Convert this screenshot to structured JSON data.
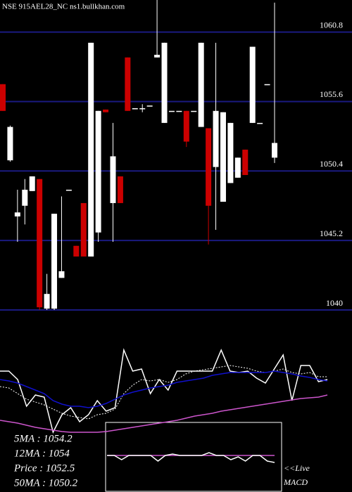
{
  "chart_data": [
    {
      "type": "candlestick",
      "title": "NSE 915AEL28_NC ns1.bullkhan.com",
      "open": [
        1056.9,
        1051.2,
        1047.0,
        1047.8,
        1048.9,
        1049.8,
        1040.1,
        1040.1,
        1042.4,
        1049.0,
        1044.8,
        1048.0,
        1044.0,
        1045.8,
        1055.0,
        1048.0,
        1050.0,
        1058.9,
        1055.1,
        1055.1,
        1055.3,
        1058.9,
        1054.0,
        1054.9,
        1054.9,
        1054.9,
        1054.9,
        1053.7,
        1053.6,
        1050.7,
        1048.1,
        1049.5,
        1049.9,
        1052.0,
        1054.0,
        1054.0,
        1056.9,
        1051.4
      ],
      "high": [
        1056.9,
        1053.8,
        1049.0,
        1049.8,
        1050.0,
        1049.8,
        1042.7,
        1047.2,
        1048.5,
        1049.0,
        1044.8,
        1048.0,
        1060.0,
        1054.9,
        1055.0,
        1054.0,
        1050.0,
        1058.9,
        1055.1,
        1055.4,
        1055.3,
        1063.2,
        1060.0,
        1054.9,
        1054.9,
        1054.9,
        1054.9,
        1060.0,
        1053.6,
        1060.0,
        1054.8,
        1054.0,
        1051.4,
        1052.0,
        1059.7,
        1054.0,
        1056.9,
        1063.0
      ],
      "low": [
        1054.9,
        1051.1,
        1045.1,
        1046.4,
        1048.9,
        1040.0,
        1040.0,
        1040.0,
        1042.4,
        1049.0,
        1044.0,
        1044.0,
        1044.0,
        1045.1,
        1054.8,
        1045.1,
        1048.0,
        1054.9,
        1055.1,
        1054.8,
        1055.3,
        1058.9,
        1054.0,
        1054.9,
        1054.9,
        1052.2,
        1054.9,
        1053.7,
        1044.9,
        1046.0,
        1048.1,
        1049.5,
        1049.9,
        1050.1,
        1054.0,
        1054.0,
        1056.9,
        1051.0
      ],
      "close": [
        1054.9,
        1053.7,
        1047.3,
        1049.0,
        1050.0,
        1040.2,
        1041.2,
        1047.2,
        1042.9,
        1049.0,
        1044.0,
        1044.0,
        1060.0,
        1054.9,
        1054.8,
        1051.5,
        1048.0,
        1054.9,
        1055.1,
        1055.1,
        1055.3,
        1059.1,
        1060.0,
        1054.9,
        1054.9,
        1052.6,
        1054.9,
        1060.0,
        1047.8,
        1054.9,
        1054.8,
        1054.0,
        1051.4,
        1050.1,
        1059.7,
        1054.0,
        1056.9,
        1052.5
      ],
      "up_color": "#ffffff",
      "down_color": "#cc0000",
      "grid_color": "#1a1a80",
      "ylim": [
        1040,
        1063.2
      ],
      "yticks": [
        1040,
        1045.2,
        1050.4,
        1055.6,
        1060.8
      ],
      "grid": true
    },
    {
      "type": "line",
      "ylim": [
        0,
        150
      ],
      "series": [
        {
          "color": "#ffffff",
          "values": [
            112,
            112,
            100,
            62,
            78,
            75,
            25,
            50,
            60,
            40,
            50,
            70,
            55,
            60,
            142,
            112,
            115,
            80,
            100,
            85,
            112,
            112,
            112,
            112,
            112,
            142,
            112,
            110,
            112,
            102,
            95,
            115,
            135,
            70,
            120,
            120,
            97,
            100
          ]
        },
        {
          "color": "#ffffff",
          "dash": true,
          "values": [
            90,
            88,
            80,
            72,
            68,
            64,
            58,
            52,
            48,
            46,
            44,
            50,
            52,
            58,
            80,
            92,
            100,
            98,
            100,
            96,
            100,
            108,
            112,
            114,
            116,
            118,
            120,
            118,
            116,
            112,
            110,
            112,
            115,
            110,
            108,
            110,
            104,
            104
          ]
        },
        {
          "color": "#1010cc",
          "values": [
            100,
            98,
            95,
            90,
            85,
            80,
            70,
            65,
            62,
            62,
            60,
            62,
            66,
            72,
            78,
            82,
            85,
            88,
            90,
            92,
            96,
            98,
            100,
            102,
            106,
            108,
            110,
            110,
            110,
            110,
            110,
            112,
            110,
            108,
            105,
            103,
            100,
            98
          ]
        },
        {
          "color": "#cc55cc",
          "values": [
            42,
            40,
            38,
            35,
            32,
            30,
            28,
            26,
            25,
            25,
            25,
            25,
            26,
            28,
            30,
            32,
            34,
            36,
            38,
            40,
            42,
            45,
            48,
            50,
            52,
            55,
            57,
            59,
            61,
            63,
            65,
            67,
            69,
            71,
            73,
            74,
            75,
            78
          ]
        }
      ],
      "legend": [
        "5MA : 1054.2",
        "12MA : 1054",
        "Price : 1052.5",
        "50MA : 1050.2"
      ]
    },
    {
      "type": "line",
      "ylim": [
        -52,
        48
      ],
      "title": "MACD",
      "note": "<<Live",
      "series": [
        {
          "color": "#cc55cc",
          "values": [
            0,
            0,
            0,
            0,
            0,
            0,
            0,
            0,
            0,
            0,
            0,
            0,
            0,
            0,
            0,
            0,
            0,
            0,
            0,
            0,
            0,
            0,
            0,
            0
          ]
        },
        {
          "color": "#ffffff",
          "values": [
            0,
            0,
            -6,
            0,
            0,
            0,
            0,
            -8,
            0,
            2,
            0,
            0,
            0,
            0,
            4,
            0,
            0,
            -6,
            -2,
            -8,
            0,
            0,
            -8,
            -10
          ]
        }
      ]
    }
  ]
}
